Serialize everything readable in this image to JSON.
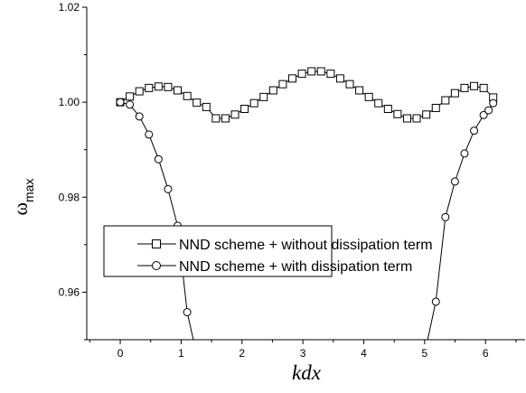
{
  "chart_data": {
    "type": "line",
    "title": "",
    "xlabel": "kdx",
    "ylabel_main": "ω",
    "ylabel_sub": "max",
    "xlim": [
      -0.55,
      6.65
    ],
    "ylim": [
      0.95,
      1.02
    ],
    "x_ticks": [
      0,
      1,
      2,
      3,
      4,
      5,
      6
    ],
    "x_tick_labels": [
      "0",
      "1",
      "2",
      "3",
      "4",
      "5",
      "6"
    ],
    "y_ticks": [
      0.96,
      0.98,
      1.0,
      1.02
    ],
    "y_tick_labels": [
      "0.96",
      "0.98",
      "1.00",
      "1.02"
    ],
    "grid": false,
    "legend_position": "lower-center",
    "series": [
      {
        "name": "NND scheme + without dissipation term",
        "marker": "square",
        "x": [
          0.0,
          0.157,
          0.314,
          0.471,
          0.628,
          0.785,
          0.942,
          1.1,
          1.257,
          1.414,
          1.571,
          1.728,
          1.885,
          2.042,
          2.199,
          2.356,
          2.513,
          2.67,
          2.827,
          2.985,
          3.142,
          3.299,
          3.456,
          3.613,
          3.77,
          3.927,
          4.084,
          4.241,
          4.398,
          4.555,
          4.712,
          4.869,
          5.027,
          5.184,
          5.341,
          5.498,
          5.655,
          5.812,
          5.969,
          6.126
        ],
        "y": [
          1.0,
          1.0012,
          1.0023,
          1.003,
          1.0033,
          1.0032,
          1.0025,
          1.0013,
          0.9999,
          0.999,
          0.9966,
          0.9966,
          0.9974,
          0.9986,
          0.9998,
          1.0011,
          1.0025,
          1.0038,
          1.005,
          1.006,
          1.0065,
          1.0065,
          1.006,
          1.005,
          1.0038,
          1.0025,
          1.0011,
          0.9998,
          0.9986,
          0.9975,
          0.9966,
          0.9966,
          0.9974,
          0.9988,
          1.0004,
          1.0019,
          1.003,
          1.0034,
          1.003,
          1.001
        ]
      },
      {
        "name": "NND scheme + with dissipation term",
        "marker": "circle",
        "x": [
          0.0,
          0.157,
          0.314,
          0.471,
          0.628,
          0.785,
          0.942,
          1.1,
          1.2,
          5.05,
          5.184,
          5.341,
          5.498,
          5.655,
          5.812,
          5.969,
          6.05,
          6.126
        ],
        "y": [
          1.0,
          0.9995,
          0.997,
          0.9932,
          0.988,
          0.9817,
          0.974,
          0.9558,
          0.95,
          0.95,
          0.958,
          0.9758,
          0.9833,
          0.9892,
          0.994,
          0.9973,
          0.9983,
          0.9998
        ],
        "markers_x": [
          0.0,
          0.157,
          0.314,
          0.471,
          0.628,
          0.785,
          0.942,
          1.1,
          5.184,
          5.341,
          5.498,
          5.655,
          5.812,
          5.969,
          6.05,
          6.126
        ],
        "markers_y": [
          1.0,
          0.9995,
          0.997,
          0.9932,
          0.988,
          0.9817,
          0.974,
          0.9558,
          0.958,
          0.9758,
          0.9833,
          0.9892,
          0.994,
          0.9973,
          0.9983,
          0.9998
        ]
      }
    ]
  }
}
